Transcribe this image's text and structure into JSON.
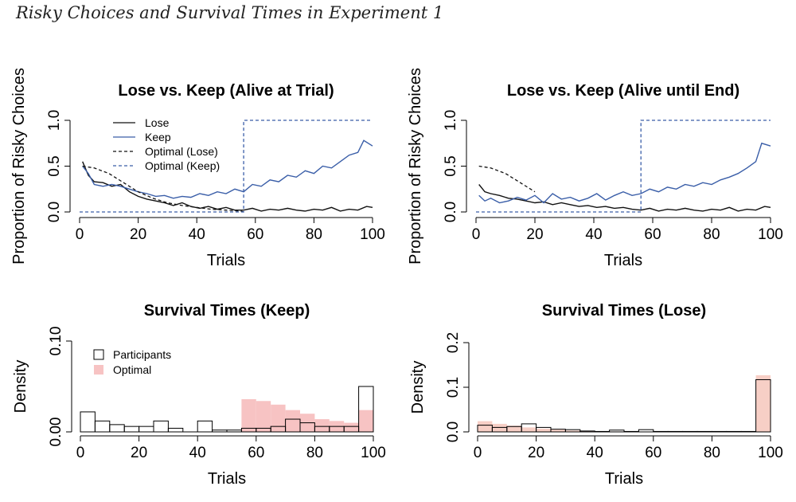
{
  "figure_title": "Risky Choices and Survival Times in Experiment 1",
  "colors": {
    "lose": "#111111",
    "keep": "#3a5ea8",
    "optimal_fill": "#f7c3c3",
    "both_fill": "#f7cfc6"
  },
  "chart_data": [
    {
      "id": "alive-at-trial",
      "type": "line",
      "title": "Lose vs. Keep (Alive at Trial)",
      "xlabel": "Trials",
      "ylabel": "Proportion of Risky Choices",
      "xlim": [
        0,
        100
      ],
      "ylim": [
        0,
        1
      ],
      "xticks": [
        0,
        20,
        40,
        60,
        80,
        100
      ],
      "yticks": [
        "0.0",
        "0.5",
        "1.0"
      ],
      "legend": [
        "Lose",
        "Keep",
        "Optimal (Lose)",
        "Optimal (Keep)"
      ],
      "series": [
        {
          "name": "Lose",
          "style": "solid",
          "x": [
            1,
            3,
            5,
            8,
            11,
            14,
            17,
            20,
            23,
            26,
            29,
            32,
            35,
            38,
            41,
            44,
            47,
            50,
            53,
            56,
            59,
            62,
            65,
            68,
            71,
            74,
            77,
            80,
            83,
            86,
            89,
            92,
            95,
            98,
            100
          ],
          "values": [
            0.55,
            0.4,
            0.33,
            0.32,
            0.28,
            0.3,
            0.22,
            0.17,
            0.14,
            0.12,
            0.1,
            0.07,
            0.1,
            0.06,
            0.04,
            0.06,
            0.03,
            0.05,
            0.02,
            0.02,
            0.04,
            0.01,
            0.03,
            0.02,
            0.04,
            0.02,
            0.01,
            0.03,
            0.02,
            0.05,
            0.01,
            0.03,
            0.02,
            0.06,
            0.05
          ]
        },
        {
          "name": "Keep",
          "style": "solid",
          "x": [
            1,
            3,
            5,
            8,
            11,
            14,
            17,
            20,
            23,
            26,
            29,
            32,
            35,
            38,
            41,
            44,
            47,
            50,
            53,
            56,
            59,
            62,
            65,
            68,
            71,
            74,
            77,
            80,
            83,
            86,
            89,
            92,
            95,
            97,
            100
          ],
          "values": [
            0.5,
            0.42,
            0.3,
            0.28,
            0.3,
            0.28,
            0.25,
            0.22,
            0.2,
            0.17,
            0.18,
            0.15,
            0.17,
            0.16,
            0.2,
            0.18,
            0.22,
            0.2,
            0.25,
            0.22,
            0.3,
            0.28,
            0.35,
            0.33,
            0.4,
            0.38,
            0.45,
            0.42,
            0.5,
            0.48,
            0.55,
            0.62,
            0.65,
            0.78,
            0.72
          ]
        },
        {
          "name": "Optimal (Lose)",
          "style": "dashed",
          "x": [
            1,
            5,
            10,
            15,
            20,
            25,
            30,
            35,
            40,
            45,
            50,
            55,
            56
          ],
          "values": [
            0.5,
            0.48,
            0.42,
            0.32,
            0.22,
            0.15,
            0.1,
            0.07,
            0.05,
            0.03,
            0.02,
            0.01,
            0.0
          ]
        },
        {
          "name": "Optimal (Keep)",
          "style": "dashed",
          "x": [
            0,
            56,
            56,
            100
          ],
          "values": [
            0.0,
            0.0,
            1.0,
            1.0
          ]
        }
      ]
    },
    {
      "id": "alive-until-end",
      "type": "line",
      "title": "Lose vs. Keep (Alive until End)",
      "xlabel": "Trials",
      "ylabel": "Proportion of Risky Choices",
      "xlim": [
        0,
        100
      ],
      "ylim": [
        0,
        1
      ],
      "xticks": [
        0,
        20,
        40,
        60,
        80,
        100
      ],
      "yticks": [
        "0.0",
        "0.5",
        "1.0"
      ],
      "series": [
        {
          "name": "Lose",
          "style": "solid",
          "x": [
            1,
            3,
            5,
            8,
            11,
            14,
            17,
            20,
            23,
            26,
            29,
            32,
            35,
            38,
            41,
            44,
            47,
            50,
            53,
            56,
            59,
            62,
            65,
            68,
            71,
            74,
            77,
            80,
            83,
            86,
            89,
            92,
            95,
            98,
            100
          ],
          "values": [
            0.3,
            0.22,
            0.2,
            0.18,
            0.15,
            0.14,
            0.12,
            0.1,
            0.11,
            0.08,
            0.1,
            0.08,
            0.06,
            0.07,
            0.05,
            0.06,
            0.04,
            0.05,
            0.03,
            0.02,
            0.04,
            0.01,
            0.03,
            0.02,
            0.04,
            0.02,
            0.01,
            0.03,
            0.02,
            0.05,
            0.01,
            0.03,
            0.02,
            0.06,
            0.05
          ]
        },
        {
          "name": "Keep",
          "style": "solid",
          "x": [
            1,
            3,
            5,
            8,
            11,
            14,
            17,
            20,
            23,
            26,
            29,
            32,
            35,
            38,
            41,
            44,
            47,
            50,
            53,
            56,
            59,
            62,
            65,
            68,
            71,
            74,
            77,
            80,
            83,
            86,
            89,
            92,
            95,
            97,
            100
          ],
          "values": [
            0.18,
            0.12,
            0.15,
            0.1,
            0.12,
            0.16,
            0.13,
            0.18,
            0.1,
            0.2,
            0.14,
            0.16,
            0.12,
            0.15,
            0.2,
            0.13,
            0.18,
            0.22,
            0.18,
            0.2,
            0.25,
            0.22,
            0.27,
            0.25,
            0.3,
            0.28,
            0.32,
            0.3,
            0.35,
            0.38,
            0.42,
            0.48,
            0.55,
            0.75,
            0.72
          ]
        },
        {
          "name": "Optimal (Lose)",
          "style": "dashed",
          "x": [
            1,
            5,
            10,
            15,
            20
          ],
          "values": [
            0.5,
            0.48,
            0.42,
            0.32,
            0.22
          ]
        },
        {
          "name": "Optimal (Keep)",
          "style": "dashed",
          "x": [
            0,
            56,
            56,
            100
          ],
          "values": [
            0.0,
            0.0,
            1.0,
            1.0
          ]
        }
      ]
    },
    {
      "id": "survival-keep",
      "type": "histogram",
      "title": "Survival Times (Keep)",
      "xlabel": "Trials",
      "ylabel": "Density",
      "xlim": [
        0,
        100
      ],
      "ylim": [
        0,
        0.1
      ],
      "xticks": [
        0,
        20,
        40,
        60,
        80,
        100
      ],
      "yticks": [
        "0.00",
        "0.10"
      ],
      "bin_edges": [
        0,
        5,
        10,
        15,
        20,
        25,
        30,
        35,
        40,
        45,
        50,
        55,
        60,
        65,
        70,
        75,
        80,
        85,
        90,
        95,
        100
      ],
      "legend": [
        "Participants",
        "Optimal"
      ],
      "series": [
        {
          "name": "Participants",
          "values": [
            0.022,
            0.012,
            0.008,
            0.006,
            0.006,
            0.012,
            0.004,
            0,
            0.012,
            0.002,
            0.002,
            0.004,
            0.004,
            0.006,
            0.014,
            0.01,
            0.006,
            0.006,
            0.006,
            0.05
          ]
        },
        {
          "name": "Optimal",
          "values": [
            0,
            0,
            0,
            0,
            0,
            0,
            0,
            0,
            0,
            0,
            0,
            0.036,
            0.034,
            0.03,
            0.024,
            0.02,
            0.014,
            0.012,
            0.01,
            0.024
          ]
        }
      ]
    },
    {
      "id": "survival-lose",
      "type": "histogram",
      "title": "Survival Times (Lose)",
      "xlabel": "Trials",
      "ylabel": "Density",
      "xlim": [
        0,
        100
      ],
      "ylim": [
        0,
        0.2
      ],
      "xticks": [
        0,
        20,
        40,
        60,
        80,
        100
      ],
      "yticks": [
        "0.0",
        "0.1",
        "0.2"
      ],
      "bin_edges": [
        0,
        5,
        10,
        15,
        20,
        25,
        30,
        35,
        40,
        45,
        50,
        55,
        60,
        65,
        70,
        75,
        80,
        85,
        90,
        95,
        100
      ],
      "series": [
        {
          "name": "Participants",
          "values": [
            0.015,
            0.01,
            0.012,
            0.018,
            0.01,
            0.006,
            0.005,
            0.002,
            0.001,
            0.004,
            0.001,
            0.005,
            0.001,
            0.001,
            0.001,
            0.001,
            0.001,
            0.001,
            0.001,
            0.117
          ]
        },
        {
          "name": "Optimal",
          "values": [
            0.024,
            0.018,
            0.014,
            0.01,
            0.007,
            0.005,
            0.003,
            0.002,
            0.001,
            0.001,
            0,
            0,
            0,
            0,
            0,
            0,
            0,
            0,
            0,
            0.127
          ]
        }
      ]
    }
  ]
}
